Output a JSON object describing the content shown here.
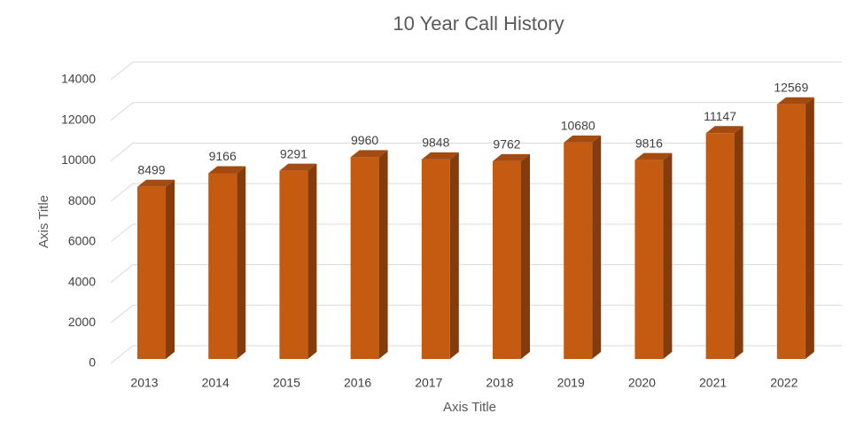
{
  "chart_data": {
    "type": "bar3d",
    "title": "10 Year Call History",
    "x_label": "Axis Title",
    "y_label": "Axis Title",
    "categories": [
      "2013",
      "2014",
      "2015",
      "2016",
      "2017",
      "2018",
      "2019",
      "2020",
      "2021",
      "2022"
    ],
    "values": [
      8499,
      9166,
      9291,
      9960,
      9848,
      9762,
      10680,
      9816,
      11147,
      12569
    ],
    "color": "#c55a11",
    "side_color": "#843c0c",
    "top_color": "#a34b10",
    "ylim": [
      0,
      14000
    ],
    "yticks": [
      0,
      2000,
      4000,
      6000,
      8000,
      10000,
      12000,
      14000
    ],
    "grid": true
  }
}
